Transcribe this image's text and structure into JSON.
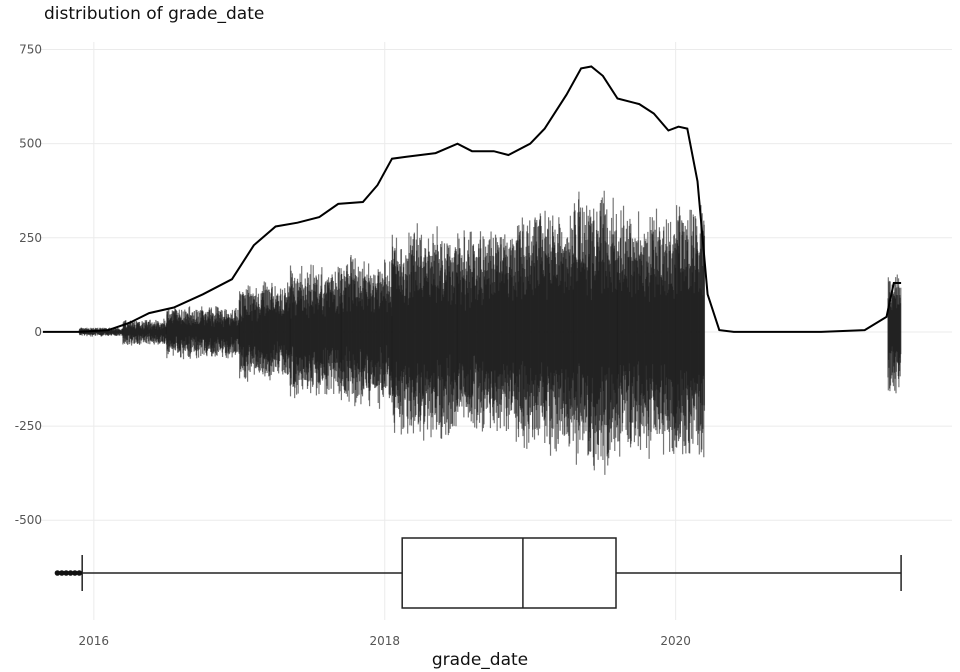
{
  "chart_data": {
    "type": "density-histogram-boxplot",
    "title": "distribution of grade_date",
    "xlabel": "grade_date",
    "ylabel": "",
    "x_ticks": [
      "2016",
      "2018",
      "2020"
    ],
    "y_ticks": [
      750,
      500,
      250,
      0,
      -250,
      -500
    ],
    "xlim": [
      2015.63,
      2021.9
    ],
    "ylim": [
      -765,
      770
    ],
    "grid": true,
    "line_color": "#000000",
    "bar_color": "#1a1a1a",
    "density": {
      "x": [
        2015.65,
        2015.9,
        2016.1,
        2016.25,
        2016.38,
        2016.55,
        2016.75,
        2016.95,
        2017.1,
        2017.25,
        2017.4,
        2017.55,
        2017.68,
        2017.85,
        2017.95,
        2018.05,
        2018.15,
        2018.35,
        2018.5,
        2018.6,
        2018.75,
        2018.85,
        2019.0,
        2019.1,
        2019.25,
        2019.35,
        2019.42,
        2019.5,
        2019.6,
        2019.75,
        2019.85,
        2019.95,
        2020.02,
        2020.08,
        2020.15,
        2020.22,
        2020.3,
        2020.4,
        2020.6,
        2021.0,
        2021.3,
        2021.45,
        2021.5,
        2021.55
      ],
      "y": [
        0,
        0,
        5,
        25,
        50,
        65,
        100,
        140,
        230,
        280,
        290,
        305,
        340,
        345,
        390,
        460,
        465,
        475,
        500,
        480,
        480,
        470,
        500,
        540,
        630,
        700,
        705,
        680,
        620,
        605,
        580,
        535,
        545,
        540,
        400,
        100,
        5,
        0,
        0,
        0,
        5,
        40,
        130,
        130
      ]
    },
    "histogram": {
      "segments": [
        {
          "start": 2015.9,
          "end": 2016.2,
          "amp": 10,
          "noise": 5
        },
        {
          "start": 2016.2,
          "end": 2016.5,
          "amp": 30,
          "noise": 15
        },
        {
          "start": 2016.5,
          "end": 2017.0,
          "amp": 60,
          "noise": 25
        },
        {
          "start": 2017.0,
          "end": 2017.35,
          "amp": 120,
          "noise": 40
        },
        {
          "start": 2017.35,
          "end": 2017.7,
          "amp": 160,
          "noise": 50
        },
        {
          "start": 2017.7,
          "end": 2018.05,
          "amp": 180,
          "noise": 60
        },
        {
          "start": 2018.05,
          "end": 2018.5,
          "amp": 260,
          "noise": 70
        },
        {
          "start": 2018.5,
          "end": 2018.9,
          "amp": 250,
          "noise": 70
        },
        {
          "start": 2018.9,
          "end": 2019.3,
          "amp": 300,
          "noise": 80
        },
        {
          "start": 2019.3,
          "end": 2019.6,
          "amp": 350,
          "noise": 90
        },
        {
          "start": 2019.6,
          "end": 2020.0,
          "amp": 300,
          "noise": 80
        },
        {
          "start": 2020.0,
          "end": 2020.2,
          "amp": 320,
          "noise": 60
        },
        {
          "start": 2021.46,
          "end": 2021.55,
          "amp": 150,
          "noise": 45
        }
      ]
    },
    "boxplot": {
      "whisker_low": 2015.92,
      "q1": 2018.12,
      "median": 2018.95,
      "q3": 2019.59,
      "whisker_high": 2021.55,
      "outliers": [
        2015.75,
        2015.78,
        2015.81,
        2015.84,
        2015.87,
        2015.9
      ]
    }
  }
}
